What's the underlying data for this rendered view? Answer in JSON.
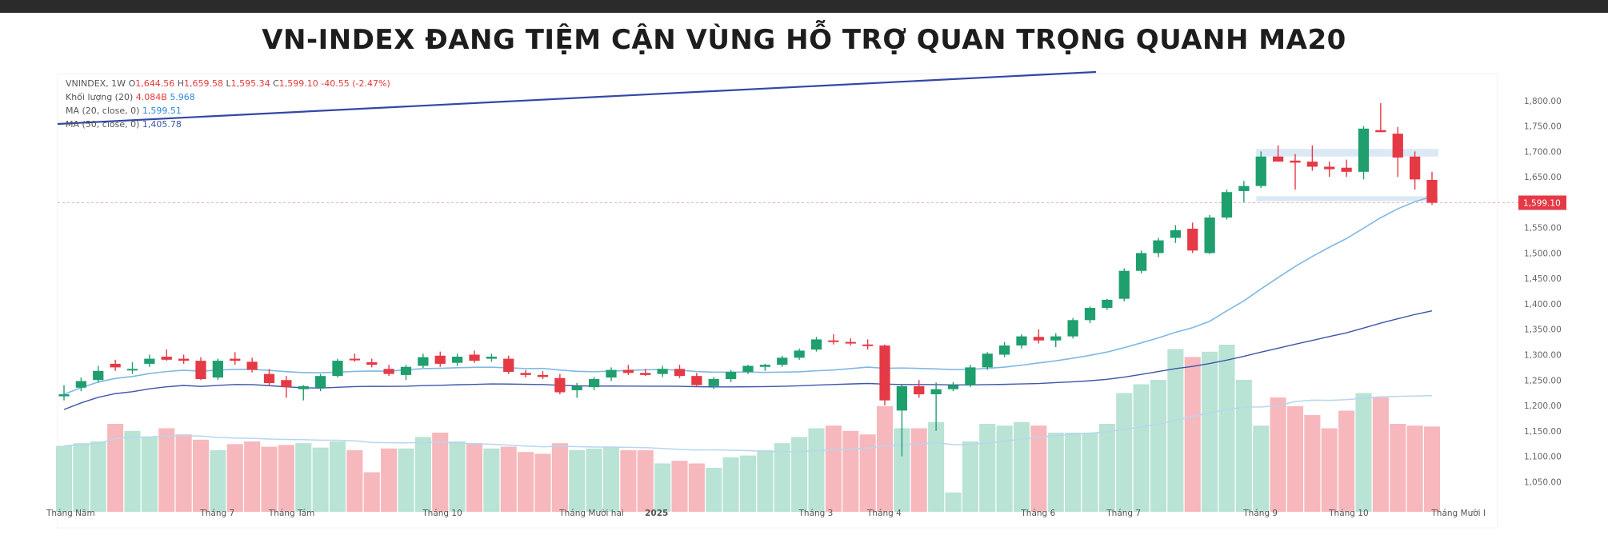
{
  "title": "VN-INDEX ĐANG TIỆM CẬN VÙNG HỖ TRỢ QUAN TRỌNG QUANH MA20",
  "legend": {
    "symbol": "VNINDEX, 1W",
    "o_label": "O",
    "o_value": "1,644.56",
    "h_label": "H",
    "h_value": "1,659.58",
    "l_label": "L",
    "l_value": "1,595.34",
    "c_label": "C",
    "c_value": "1,599.10",
    "change": "-40.55 (-2.47%)",
    "vol_label": "Khối lượng (20)",
    "vol_value1": "4.084B",
    "vol_value2": "5.968",
    "ma20_label": "MA (20, close, 0)",
    "ma20_value": "1,599.51",
    "ma50_label": "MA (50, close, 0)",
    "ma50_value": "1,405.78"
  },
  "colors": {
    "up": "#1f9e6e",
    "down": "#e53946",
    "up_vol": "#b9e3d5",
    "down_vol": "#f6b8bd",
    "ma20": "#7fb8e6",
    "ma50": "#3d56a8",
    "trend": "#3347a6",
    "zone": "#dbe9f6"
  },
  "chart_data": {
    "type": "candlestick",
    "title": "VN-INDEX ĐANG TIỆM CẬN VÙNG HỖ TRỢ QUAN TRỌNG QUANH MA20",
    "x_ticks": [
      {
        "i": 0,
        "label": "Tháng Năm"
      },
      {
        "i": 9,
        "label": "Tháng 7"
      },
      {
        "i": 13,
        "label": "Tháng Tám"
      },
      {
        "i": 22,
        "label": "Tháng 10"
      },
      {
        "i": 30,
        "label": "Tháng Mười hai"
      },
      {
        "i": 35,
        "label": "2025"
      },
      {
        "i": 44,
        "label": "Tháng 3"
      },
      {
        "i": 48,
        "label": "Tháng 4"
      },
      {
        "i": 57,
        "label": "Tháng 6"
      },
      {
        "i": 62,
        "label": "Tháng 7"
      },
      {
        "i": 70,
        "label": "Tháng 9"
      },
      {
        "i": 75,
        "label": "Tháng 10"
      },
      {
        "i": 81,
        "label": "Tháng Mười I"
      }
    ],
    "y_ticks": [
      "1,800.00",
      "1,750.00",
      "1,700.00",
      "1,650.00",
      "1,550.00",
      "1,500.00",
      "1,450.00",
      "1,400.00",
      "1,350.00",
      "1,300.00",
      "1,250.00",
      "1,200.00",
      "1,150.00",
      "1,100.00",
      "1,050.00"
    ],
    "ylim": [
      1030,
      1825
    ],
    "last_price_label": "1,599.10",
    "last_price": 1599.1,
    "support_zone": {
      "from": 1602,
      "to": 1612
    },
    "resistance_zone": {
      "from": 1690,
      "to": 1705
    },
    "ohlc": [
      [
        1218,
        1240,
        1210,
        1222
      ],
      [
        1235,
        1255,
        1228,
        1248
      ],
      [
        1250,
        1278,
        1245,
        1268
      ],
      [
        1282,
        1290,
        1268,
        1275
      ],
      [
        1270,
        1285,
        1262,
        1272
      ],
      [
        1282,
        1300,
        1276,
        1292
      ],
      [
        1296,
        1310,
        1288,
        1290
      ],
      [
        1292,
        1300,
        1282,
        1288
      ],
      [
        1288,
        1295,
        1250,
        1252
      ],
      [
        1255,
        1292,
        1250,
        1288
      ],
      [
        1292,
        1305,
        1280,
        1288
      ],
      [
        1286,
        1294,
        1265,
        1270
      ],
      [
        1262,
        1272,
        1238,
        1244
      ],
      [
        1250,
        1258,
        1215,
        1236
      ],
      [
        1232,
        1240,
        1210,
        1238
      ],
      [
        1235,
        1262,
        1228,
        1258
      ],
      [
        1258,
        1292,
        1255,
        1288
      ],
      [
        1292,
        1302,
        1286,
        1290
      ],
      [
        1285,
        1292,
        1275,
        1280
      ],
      [
        1272,
        1280,
        1258,
        1262
      ],
      [
        1260,
        1280,
        1250,
        1276
      ],
      [
        1278,
        1302,
        1274,
        1295
      ],
      [
        1298,
        1306,
        1276,
        1282
      ],
      [
        1284,
        1302,
        1278,
        1296
      ],
      [
        1300,
        1308,
        1284,
        1288
      ],
      [
        1292,
        1302,
        1286,
        1296
      ],
      [
        1292,
        1298,
        1262,
        1266
      ],
      [
        1264,
        1270,
        1255,
        1260
      ],
      [
        1260,
        1268,
        1252,
        1256
      ],
      [
        1254,
        1262,
        1222,
        1226
      ],
      [
        1230,
        1244,
        1215,
        1238
      ],
      [
        1236,
        1256,
        1230,
        1252
      ],
      [
        1255,
        1275,
        1248,
        1270
      ],
      [
        1270,
        1280,
        1260,
        1264
      ],
      [
        1264,
        1272,
        1258,
        1260
      ],
      [
        1262,
        1278,
        1256,
        1272
      ],
      [
        1272,
        1280,
        1254,
        1258
      ],
      [
        1258,
        1264,
        1236,
        1240
      ],
      [
        1238,
        1256,
        1232,
        1252
      ],
      [
        1252,
        1270,
        1246,
        1266
      ],
      [
        1266,
        1280,
        1262,
        1278
      ],
      [
        1276,
        1282,
        1268,
        1280
      ],
      [
        1280,
        1298,
        1276,
        1294
      ],
      [
        1294,
        1312,
        1290,
        1308
      ],
      [
        1310,
        1335,
        1306,
        1330
      ],
      [
        1328,
        1340,
        1320,
        1326
      ],
      [
        1325,
        1332,
        1318,
        1322
      ],
      [
        1320,
        1330,
        1310,
        1318
      ],
      [
        1318,
        1320,
        1200,
        1210
      ],
      [
        1190,
        1240,
        1100,
        1238
      ],
      [
        1238,
        1250,
        1215,
        1222
      ],
      [
        1222,
        1245,
        1150,
        1232
      ],
      [
        1232,
        1246,
        1228,
        1240
      ],
      [
        1240,
        1280,
        1236,
        1275
      ],
      [
        1275,
        1305,
        1270,
        1302
      ],
      [
        1300,
        1325,
        1295,
        1318
      ],
      [
        1318,
        1340,
        1312,
        1336
      ],
      [
        1335,
        1350,
        1322,
        1328
      ],
      [
        1328,
        1342,
        1315,
        1336
      ],
      [
        1336,
        1372,
        1332,
        1368
      ],
      [
        1368,
        1395,
        1362,
        1392
      ],
      [
        1392,
        1410,
        1388,
        1408
      ],
      [
        1410,
        1470,
        1405,
        1465
      ],
      [
        1465,
        1505,
        1460,
        1500
      ],
      [
        1500,
        1530,
        1492,
        1525
      ],
      [
        1530,
        1555,
        1520,
        1545
      ],
      [
        1548,
        1560,
        1500,
        1505
      ],
      [
        1500,
        1575,
        1498,
        1570
      ],
      [
        1570,
        1625,
        1566,
        1620
      ],
      [
        1622,
        1642,
        1600,
        1632
      ],
      [
        1632,
        1700,
        1628,
        1690
      ],
      [
        1690,
        1712,
        1680,
        1680
      ],
      [
        1682,
        1695,
        1625,
        1678
      ],
      [
        1680,
        1712,
        1662,
        1670
      ],
      [
        1670,
        1680,
        1650,
        1665
      ],
      [
        1668,
        1684,
        1650,
        1660
      ],
      [
        1660,
        1750,
        1645,
        1745
      ],
      [
        1742,
        1795,
        1738,
        1738
      ],
      [
        1735,
        1748,
        1650,
        1688
      ],
      [
        1690,
        1700,
        1625,
        1645
      ],
      [
        1644,
        1660,
        1595,
        1599
      ]
    ],
    "volume": [
      0.75,
      0.78,
      0.8,
      1.0,
      0.92,
      0.85,
      0.95,
      0.88,
      0.82,
      0.7,
      0.77,
      0.8,
      0.74,
      0.76,
      0.78,
      0.73,
      0.8,
      0.7,
      0.45,
      0.72,
      0.72,
      0.85,
      0.9,
      0.8,
      0.78,
      0.72,
      0.74,
      0.68,
      0.66,
      0.78,
      0.7,
      0.72,
      0.74,
      0.7,
      0.7,
      0.55,
      0.58,
      0.55,
      0.5,
      0.62,
      0.64,
      0.7,
      0.78,
      0.85,
      0.95,
      0.98,
      0.92,
      0.88,
      1.2,
      0.95,
      0.95,
      1.02,
      0.22,
      0.8,
      1.0,
      0.98,
      1.02,
      0.98,
      0.9,
      0.9,
      0.9,
      1.0,
      1.35,
      1.45,
      1.5,
      1.85,
      1.76,
      1.82,
      1.9,
      1.5,
      0.98,
      1.3,
      1.2,
      1.1,
      0.95,
      1.15,
      1.35,
      1.3,
      1.0,
      0.98,
      0.97
    ]
  }
}
